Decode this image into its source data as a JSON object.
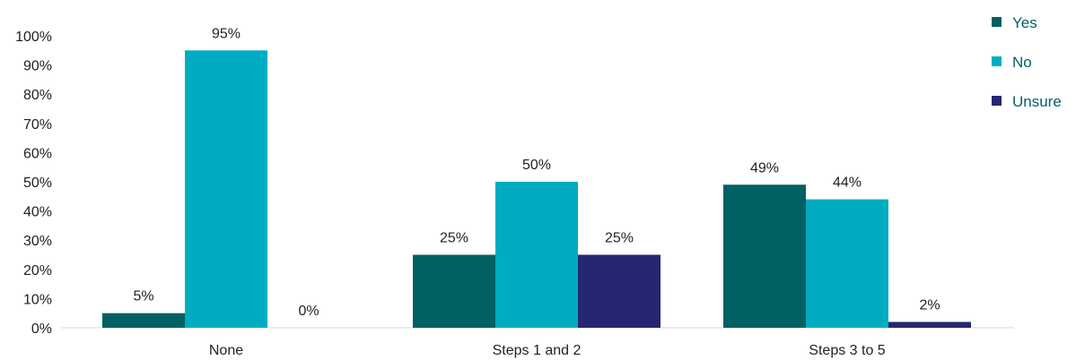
{
  "chart_data": {
    "type": "bar",
    "categories": [
      "None",
      "Steps 1 and 2",
      "Steps 3 to 5"
    ],
    "series": [
      {
        "name": "Yes",
        "values": [
          5,
          25,
          49
        ],
        "color": "#006064"
      },
      {
        "name": "No",
        "values": [
          95,
          50,
          44
        ],
        "color": "#00acc1"
      },
      {
        "name": "Unsure",
        "values": [
          0,
          25,
          2
        ],
        "color": "#262673"
      }
    ],
    "data_labels": [
      [
        "5%",
        "25%",
        "49%"
      ],
      [
        "95%",
        "50%",
        "44%"
      ],
      [
        "0%",
        "25%",
        "2%"
      ]
    ],
    "y_ticks": [
      "0%",
      "10%",
      "20%",
      "30%",
      "40%",
      "50%",
      "60%",
      "70%",
      "80%",
      "90%",
      "100%"
    ],
    "ylim": [
      0,
      100
    ],
    "title": "",
    "xlabel": "",
    "ylabel": "",
    "grid": false,
    "legend_position": "top-right",
    "legend_text_color": "#006064"
  }
}
